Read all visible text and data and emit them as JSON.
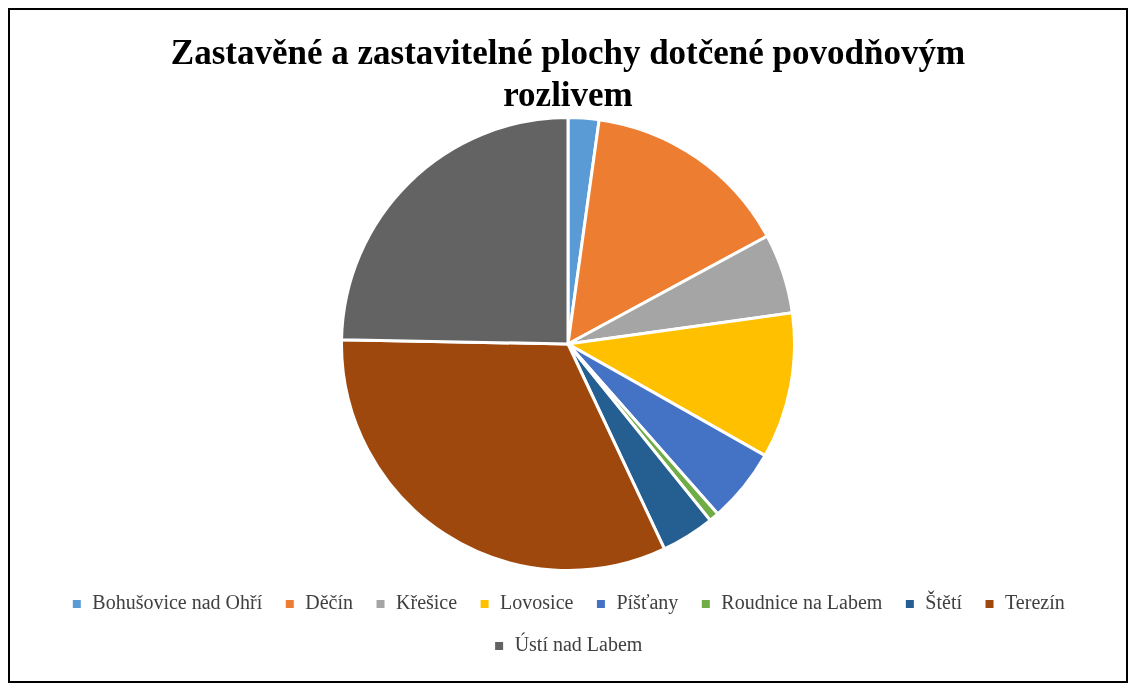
{
  "chart_data": {
    "type": "pie",
    "title": "Zastavěné a zastavitelné plochy dotčené povodňovým rozlivem",
    "categories": [
      "Bohušovice nad Ohří",
      "Děčín",
      "Křešice",
      "Lovosice",
      "Píšťany",
      "Roudnice na Labem",
      "Štětí",
      "Terezín",
      "Ústí nad Labem"
    ],
    "values": [
      2.2,
      14.9,
      5.7,
      10.4,
      5.3,
      0.7,
      3.8,
      32.3,
      24.7
    ],
    "colors": [
      "#5b9bd5",
      "#ed7d31",
      "#a5a5a5",
      "#ffc000",
      "#4472c4",
      "#70ad47",
      "#255e91",
      "#9e480e",
      "#636363"
    ],
    "legend": "bottom"
  }
}
